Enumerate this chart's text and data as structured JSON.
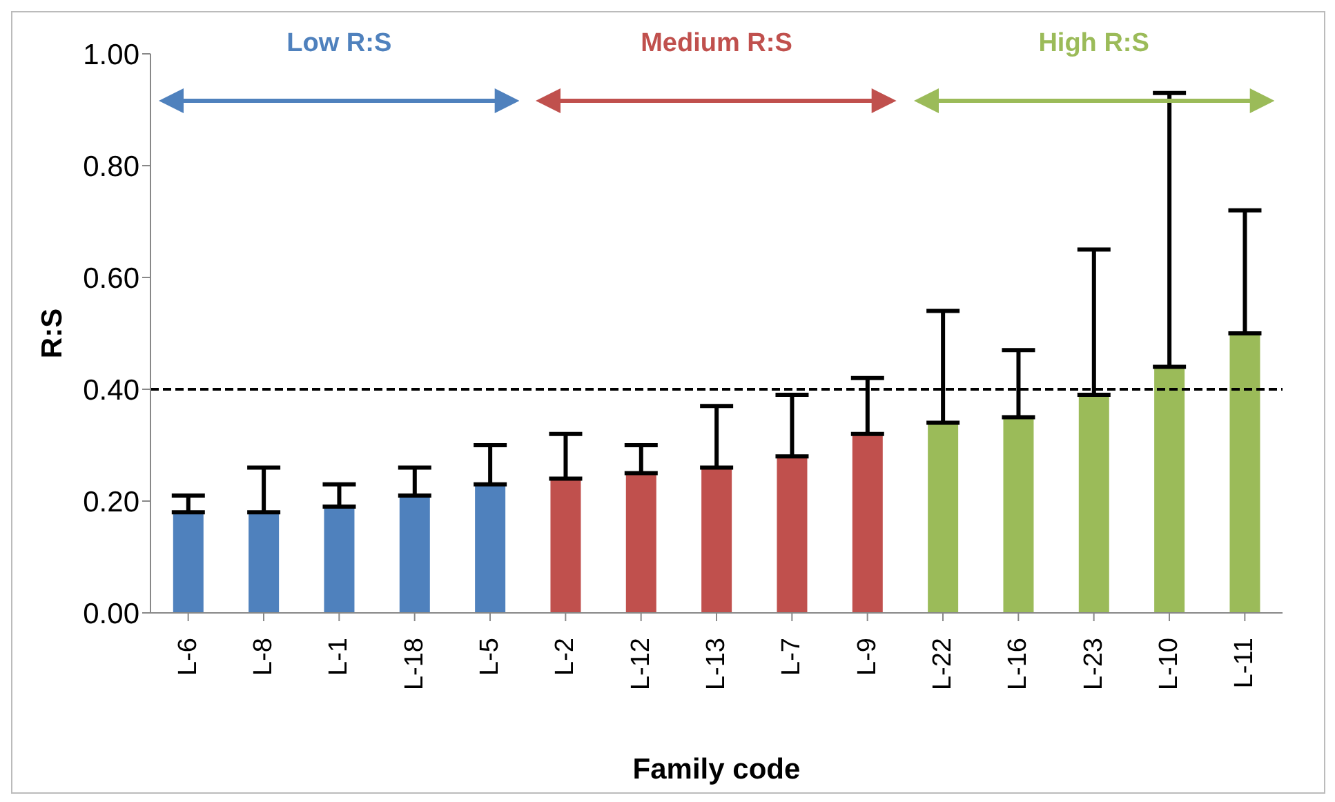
{
  "chart_data": {
    "type": "bar",
    "xlabel": "Family code",
    "ylabel": "R:S",
    "categories": [
      "L-6",
      "L-8",
      "L-1",
      "L-18",
      "L-5",
      "L-2",
      "L-12",
      "L-13",
      "L-7",
      "L-9",
      "L-22",
      "L-16",
      "L-23",
      "L-10",
      "L-11"
    ],
    "values": [
      0.18,
      0.18,
      0.19,
      0.21,
      0.23,
      0.24,
      0.25,
      0.26,
      0.28,
      0.32,
      0.34,
      0.35,
      0.39,
      0.44,
      0.5
    ],
    "errors": [
      [
        0.18,
        0.21
      ],
      [
        0.18,
        0.26
      ],
      [
        0.19,
        0.23
      ],
      [
        0.21,
        0.26
      ],
      [
        0.23,
        0.3
      ],
      [
        0.24,
        0.32
      ],
      [
        0.25,
        0.3
      ],
      [
        0.26,
        0.37
      ],
      [
        0.28,
        0.39
      ],
      [
        0.32,
        0.42
      ],
      [
        0.34,
        0.54
      ],
      [
        0.35,
        0.47
      ],
      [
        0.39,
        0.65
      ],
      [
        0.44,
        0.93
      ],
      [
        0.5,
        0.72
      ]
    ],
    "colors": [
      "#4f81bd",
      "#4f81bd",
      "#4f81bd",
      "#4f81bd",
      "#4f81bd",
      "#c0504d",
      "#c0504d",
      "#c0504d",
      "#c0504d",
      "#c0504d",
      "#9bbb59",
      "#9bbb59",
      "#9bbb59",
      "#9bbb59",
      "#9bbb59"
    ],
    "ylim": [
      0,
      1
    ],
    "yticks": [
      {
        "value": 0,
        "label": "0.00"
      },
      {
        "value": 0.2,
        "label": "0.20"
      },
      {
        "value": 0.4,
        "label": "0.40"
      },
      {
        "value": 0.6,
        "label": "0.60"
      },
      {
        "value": 0.8,
        "label": "0.80"
      },
      {
        "value": 1,
        "label": "1.00"
      }
    ],
    "ref_lines": [
      {
        "axis": "y",
        "value": 0.4,
        "label": null,
        "color": "#000000",
        "line_style": "dashed"
      }
    ],
    "annotations": [
      "Low R:S",
      "Medium R:S",
      "High  R:S"
    ],
    "grid": false,
    "legend": false
  }
}
